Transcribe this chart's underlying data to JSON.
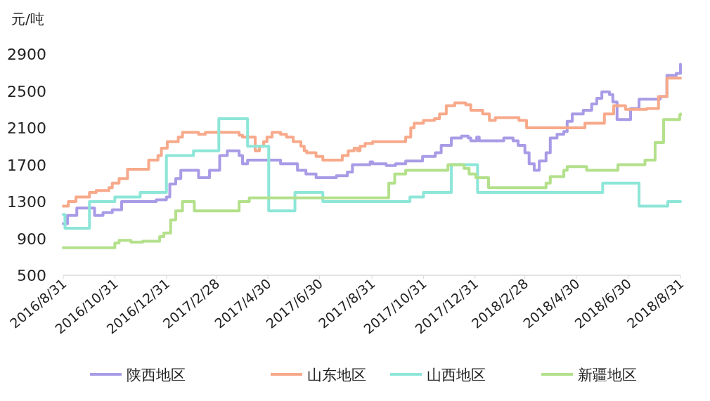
{
  "chart_data": {
    "type": "step",
    "ylabel": "元/吨",
    "legend": "bottom",
    "xlim": [
      "2016-08-31",
      "2018-08-31"
    ],
    "xticks": [
      {
        "value": "2016-08-31",
        "label": "2016/8/31"
      },
      {
        "value": "2016-10-31",
        "label": "2016/10/31"
      },
      {
        "value": "2016-12-31",
        "label": "2016/12/31"
      },
      {
        "value": "2017-02-28",
        "label": "2017/2/28"
      },
      {
        "value": "2017-04-30",
        "label": "2017/4/30"
      },
      {
        "value": "2017-06-30",
        "label": "2017/6/30"
      },
      {
        "value": "2017-08-31",
        "label": "2017/8/31"
      },
      {
        "value": "2017-10-31",
        "label": "2017/10/31"
      },
      {
        "value": "2017-12-31",
        "label": "2017/12/31"
      },
      {
        "value": "2018-02-28",
        "label": "2018/2/28"
      },
      {
        "value": "2018-04-30",
        "label": "2018/4/30"
      },
      {
        "value": "2018-06-30",
        "label": "2018/6/30"
      },
      {
        "value": "2018-08-31",
        "label": "2018/8/31"
      }
    ],
    "ylim": [
      500,
      2900
    ],
    "yticks": [
      500,
      900,
      1300,
      1700,
      2100,
      2500,
      2900
    ],
    "series": [
      {
        "name": "陕西地区",
        "color": "#a99be6",
        "x": [
          "2016-08-31",
          "2016-09-05",
          "2016-09-16",
          "2016-10-07",
          "2016-10-17",
          "2016-10-28",
          "2016-11-08",
          "2016-12-19",
          "2016-12-31",
          "2017-01-04",
          "2017-01-11",
          "2017-01-17",
          "2017-02-07",
          "2017-02-20",
          "2017-03-04",
          "2017-03-13",
          "2017-03-27",
          "2017-03-31",
          "2017-04-06",
          "2017-05-07",
          "2017-05-15",
          "2017-06-04",
          "2017-06-14",
          "2017-06-26",
          "2017-07-20",
          "2017-08-02",
          "2017-08-08",
          "2017-08-29",
          "2017-09-01",
          "2017-09-17",
          "2017-09-28",
          "2017-10-10",
          "2017-10-30",
          "2017-11-14",
          "2017-11-21",
          "2017-12-03",
          "2017-12-15",
          "2017-12-23",
          "2017-12-26",
          "2018-01-02",
          "2018-01-05",
          "2018-02-03",
          "2018-02-14",
          "2018-02-20",
          "2018-02-28",
          "2018-03-05",
          "2018-03-11",
          "2018-03-17",
          "2018-03-25",
          "2018-03-30",
          "2018-04-07",
          "2018-04-15",
          "2018-04-19",
          "2018-04-25",
          "2018-05-08",
          "2018-05-18",
          "2018-05-24",
          "2018-05-30",
          "2018-06-08",
          "2018-06-12",
          "2018-06-17",
          "2018-07-03",
          "2018-07-13",
          "2018-08-07",
          "2018-08-15",
          "2018-08-26",
          "2018-08-31"
        ],
        "values": [
          1060,
          1150,
          1230,
          1150,
          1180,
          1210,
          1300,
          1320,
          1350,
          1490,
          1550,
          1640,
          1560,
          1640,
          1800,
          1850,
          1800,
          1710,
          1750,
          1750,
          1710,
          1640,
          1600,
          1560,
          1580,
          1620,
          1700,
          1730,
          1710,
          1690,
          1710,
          1740,
          1790,
          1830,
          1910,
          1990,
          2010,
          1990,
          1960,
          2000,
          1960,
          1990,
          1960,
          1910,
          1830,
          1710,
          1640,
          1740,
          1830,
          1990,
          2030,
          2060,
          2170,
          2250,
          2290,
          2360,
          2420,
          2490,
          2460,
          2380,
          2190,
          2310,
          2410,
          2440,
          2670,
          2690,
          2790
        ]
      },
      {
        "name": "山东地区",
        "color": "#f7a98a",
        "x": [
          "2016-08-31",
          "2016-09-06",
          "2016-09-15",
          "2016-10-01",
          "2016-10-09",
          "2016-10-24",
          "2016-10-28",
          "2016-11-05",
          "2016-11-15",
          "2016-12-10",
          "2016-12-21",
          "2016-12-25",
          "2017-01-01",
          "2017-01-14",
          "2017-01-19",
          "2017-02-07",
          "2017-02-15",
          "2017-03-27",
          "2017-03-31",
          "2017-04-15",
          "2017-04-20",
          "2017-04-25",
          "2017-04-29",
          "2017-05-05",
          "2017-05-15",
          "2017-05-22",
          "2017-05-30",
          "2017-06-08",
          "2017-06-12",
          "2017-06-15",
          "2017-06-26",
          "2017-07-04",
          "2017-07-27",
          "2017-08-03",
          "2017-08-10",
          "2017-08-14",
          "2017-08-17",
          "2017-08-23",
          "2017-09-01",
          "2017-10-10",
          "2017-10-16",
          "2017-10-20",
          "2017-10-31",
          "2017-11-13",
          "2017-11-19",
          "2017-11-27",
          "2017-12-07",
          "2017-12-20",
          "2017-12-26",
          "2018-01-09",
          "2018-01-17",
          "2018-01-24",
          "2018-02-21",
          "2018-03-02",
          "2018-05-10",
          "2018-06-02",
          "2018-06-13",
          "2018-06-27",
          "2018-07-22",
          "2018-08-05",
          "2018-08-15",
          "2018-08-31"
        ],
        "values": [
          1250,
          1300,
          1350,
          1400,
          1420,
          1450,
          1500,
          1550,
          1650,
          1750,
          1800,
          1880,
          1950,
          2000,
          2050,
          2030,
          2050,
          2020,
          2000,
          1850,
          1900,
          1950,
          2000,
          2050,
          2030,
          2000,
          1950,
          1900,
          1850,
          1830,
          1790,
          1750,
          1800,
          1850,
          1880,
          1850,
          1900,
          1930,
          1950,
          2000,
          2100,
          2150,
          2180,
          2200,
          2250,
          2340,
          2370,
          2350,
          2290,
          2250,
          2180,
          2210,
          2180,
          2100,
          2150,
          2250,
          2340,
          2300,
          2310,
          2440,
          2640,
          2640
        ]
      },
      {
        "name": "山西地区",
        "color": "#8de6d8",
        "x": [
          "2016-08-31",
          "2016-09-02",
          "2016-10-01",
          "2016-10-31",
          "2016-11-30",
          "2016-12-31",
          "2017-02-01",
          "2017-03-03",
          "2017-04-06",
          "2017-05-01",
          "2017-06-01",
          "2017-07-04",
          "2017-10-15",
          "2017-10-31",
          "2017-12-03",
          "2018-01-03",
          "2018-05-31",
          "2018-07-13",
          "2018-08-16",
          "2018-08-31"
        ],
        "values": [
          1160,
          1010,
          1300,
          1350,
          1400,
          1800,
          1850,
          2200,
          1900,
          1200,
          1400,
          1300,
          1350,
          1400,
          1700,
          1400,
          1500,
          1250,
          1300,
          1300
        ]
      },
      {
        "name": "新疆地区",
        "color": "#b3e08a",
        "x": [
          "2016-08-31",
          "2016-10-31",
          "2016-11-05",
          "2016-11-19",
          "2016-12-03",
          "2016-12-23",
          "2016-12-28",
          "2017-01-05",
          "2017-01-11",
          "2017-01-19",
          "2017-02-02",
          "2017-03-27",
          "2017-04-08",
          "2017-09-20",
          "2017-09-27",
          "2017-10-10",
          "2017-11-29",
          "2017-12-18",
          "2017-12-24",
          "2018-01-01",
          "2018-01-16",
          "2018-03-25",
          "2018-03-30",
          "2018-04-15",
          "2018-04-19",
          "2018-05-12",
          "2018-06-18",
          "2018-07-20",
          "2018-08-01",
          "2018-08-11",
          "2018-08-30",
          "2018-08-31"
        ],
        "values": [
          800,
          850,
          880,
          860,
          870,
          920,
          960,
          1100,
          1200,
          1300,
          1200,
          1300,
          1340,
          1500,
          1600,
          1640,
          1700,
          1660,
          1600,
          1560,
          1450,
          1500,
          1570,
          1640,
          1680,
          1640,
          1700,
          1750,
          1940,
          2190,
          2240,
          2250
        ]
      }
    ]
  }
}
